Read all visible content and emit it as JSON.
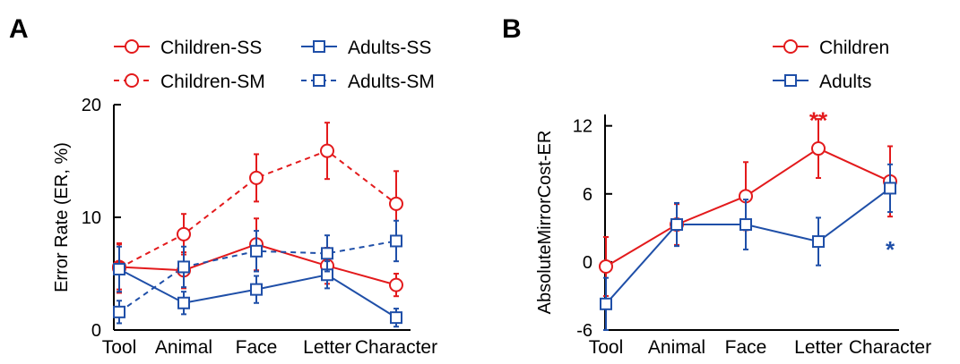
{
  "colors": {
    "children": "#e31a1c",
    "adults": "#1f4fa8",
    "axis": "#000000"
  },
  "chart_data": [
    {
      "panel": "A",
      "type": "line",
      "ylabel": "Error Rate (ER, %)",
      "xlabel": "",
      "categories": [
        "Tool",
        "Animal",
        "Face",
        "Letter",
        "Character"
      ],
      "yticks": [
        "0",
        "10",
        "20"
      ],
      "ylim": [
        0,
        20
      ],
      "grid": false,
      "legend_position": "top",
      "series": [
        {
          "name": "Children-SS",
          "color": "#e31a1c",
          "style": "solid",
          "marker": "circle",
          "values": [
            5.6,
            5.3,
            7.6,
            5.7,
            4.0
          ],
          "errors": [
            2.0,
            1.6,
            2.3,
            1.6,
            1.0
          ]
        },
        {
          "name": "Children-SM",
          "color": "#e31a1c",
          "style": "dashed",
          "marker": "circle",
          "values": [
            5.5,
            8.5,
            13.5,
            15.9,
            11.2
          ],
          "errors": [
            2.2,
            1.8,
            2.1,
            2.5,
            2.9
          ]
        },
        {
          "name": "Adults-SS",
          "color": "#1f4fa8",
          "style": "solid",
          "marker": "square",
          "values": [
            5.4,
            2.4,
            3.6,
            4.9,
            1.1
          ],
          "errors": [
            2.0,
            1.0,
            1.2,
            1.2,
            0.8
          ]
        },
        {
          "name": "Adults-SM",
          "color": "#1f4fa8",
          "style": "dashed",
          "marker": "square",
          "values": [
            1.6,
            5.6,
            7.0,
            6.8,
            7.9
          ],
          "errors": [
            1.0,
            1.8,
            1.8,
            1.6,
            1.8
          ]
        }
      ]
    },
    {
      "panel": "B",
      "type": "line",
      "ylabel": "AbsoluteMirrorCost-ER",
      "xlabel": "",
      "categories": [
        "Tool",
        "Animal",
        "Face",
        "Letter",
        "Character"
      ],
      "yticks": [
        "-6",
        "0",
        "6",
        "12"
      ],
      "ylim": [
        -6,
        13
      ],
      "grid": false,
      "legend_position": "top-right",
      "series": [
        {
          "name": "Children",
          "color": "#e31a1c",
          "style": "solid",
          "marker": "circle",
          "values": [
            -0.4,
            3.3,
            5.8,
            10.0,
            7.1
          ],
          "errors": [
            2.6,
            1.8,
            3.0,
            2.6,
            3.1
          ]
        },
        {
          "name": "Adults",
          "color": "#1f4fa8",
          "style": "solid",
          "marker": "square",
          "values": [
            -3.7,
            3.3,
            3.3,
            1.8,
            6.5
          ],
          "errors": [
            2.3,
            1.9,
            2.2,
            2.1,
            2.1
          ]
        }
      ],
      "annotations": [
        {
          "text": "**",
          "category": "Letter",
          "y": 12.9,
          "color": "#e31a1c"
        },
        {
          "text": "*",
          "category": "Character",
          "y": 1.5,
          "color": "#1f4fa8"
        }
      ]
    }
  ]
}
